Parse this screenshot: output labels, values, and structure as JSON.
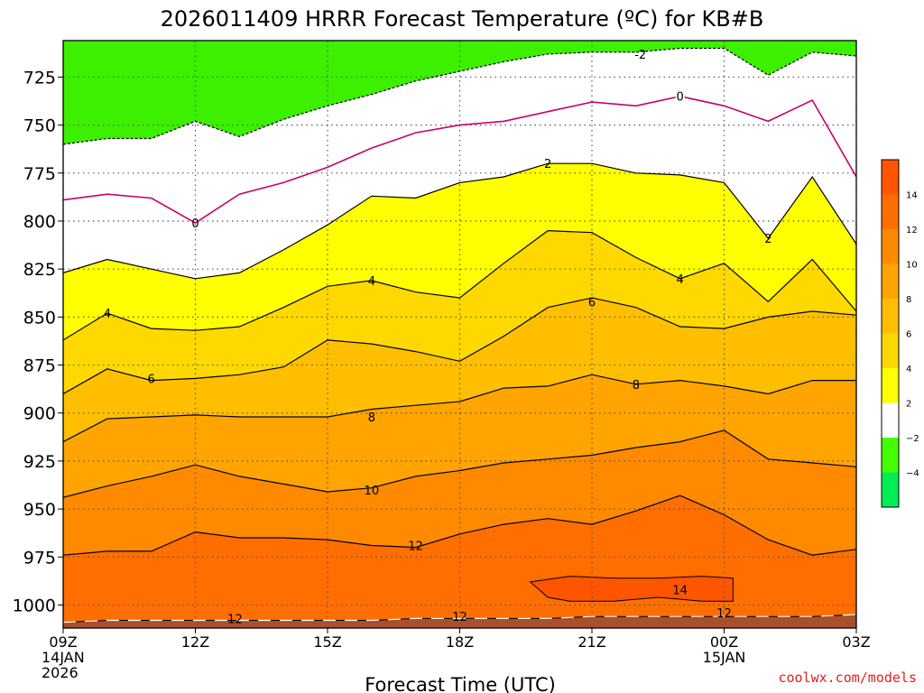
{
  "chart_data": {
    "type": "heatmap",
    "title": "2026011409 HRRR Forecast Temperature (ºC) for KB#B",
    "xlabel": "Forecast Time (UTC)",
    "ylabel": "",
    "credit": "coolwx.com/models",
    "x_ticks": [
      {
        "lines": [
          "09Z",
          "14JAN",
          "2026"
        ],
        "hour": 0
      },
      {
        "lines": [
          "12Z"
        ],
        "hour": 3
      },
      {
        "lines": [
          "15Z"
        ],
        "hour": 6
      },
      {
        "lines": [
          "18Z"
        ],
        "hour": 9
      },
      {
        "lines": [
          "21Z"
        ],
        "hour": 12
      },
      {
        "lines": [
          "00Z",
          "15JAN"
        ],
        "hour": 15
      },
      {
        "lines": [
          "03Z"
        ],
        "hour": 18
      }
    ],
    "xlim": [
      0,
      18
    ],
    "y_ticks": [
      725,
      750,
      775,
      800,
      825,
      850,
      875,
      900,
      925,
      950,
      975,
      1000
    ],
    "ylim": [
      1012,
      706
    ],
    "grid": true,
    "hours": [
      0,
      1,
      2,
      3,
      4,
      5,
      6,
      7,
      8,
      9,
      10,
      11,
      12,
      13,
      14,
      15,
      16,
      17,
      18
    ],
    "surface_pressure_hPa": [
      1009,
      1008,
      1008,
      1008,
      1008,
      1008,
      1008,
      1008,
      1007,
      1007,
      1007,
      1007,
      1006,
      1006,
      1006,
      1006,
      1006,
      1006,
      1005
    ],
    "isotherms_hPa": [
      {
        "temp": -2,
        "pressure": [
          760,
          757,
          757,
          748,
          756,
          747,
          740,
          734,
          727,
          722,
          717,
          713,
          712,
          712,
          710,
          710,
          724,
          712,
          714
        ]
      },
      {
        "temp": 0,
        "pressure": [
          789,
          786,
          788,
          801,
          786,
          780,
          772,
          762,
          754,
          750,
          748,
          743,
          738,
          740,
          735,
          740,
          748,
          737,
          777
        ]
      },
      {
        "temp": 2,
        "pressure": [
          827,
          820,
          825,
          830,
          827,
          815,
          802,
          787,
          788,
          780,
          777,
          770,
          770,
          775,
          776,
          780,
          809,
          777,
          812
        ]
      },
      {
        "temp": 4,
        "pressure": [
          862,
          848,
          856,
          857,
          855,
          845,
          834,
          831,
          837,
          840,
          822,
          805,
          806,
          819,
          830,
          822,
          842,
          820,
          847
        ]
      },
      {
        "temp": 6,
        "pressure": [
          890,
          877,
          883,
          882,
          880,
          876,
          862,
          864,
          868,
          873,
          860,
          845,
          840,
          845,
          855,
          856,
          850,
          847,
          849
        ]
      },
      {
        "temp": 8,
        "pressure": [
          915,
          903,
          902,
          901,
          902,
          902,
          902,
          898,
          896,
          894,
          887,
          886,
          880,
          885,
          883,
          886,
          890,
          883,
          883
        ]
      },
      {
        "temp": 10,
        "pressure": [
          944,
          938,
          933,
          927,
          933,
          937,
          941,
          939,
          933,
          930,
          926,
          924,
          922,
          918,
          915,
          909,
          924,
          926,
          928
        ]
      },
      {
        "temp": 12,
        "pressure": [
          974,
          972,
          972,
          962,
          965,
          965,
          966,
          969,
          970,
          963,
          958,
          955,
          958,
          951,
          943,
          953,
          966,
          974,
          971
        ]
      }
    ],
    "isotherm_labels": [
      {
        "text": "-2",
        "hour": 13.1,
        "pressure": 713
      },
      {
        "text": "0",
        "hour": 14.0,
        "pressure": 735
      },
      {
        "text": "0",
        "hour": 3.0,
        "pressure": 801
      },
      {
        "text": "2",
        "hour": 11.0,
        "pressure": 770
      },
      {
        "text": "2",
        "hour": 16.0,
        "pressure": 809
      },
      {
        "text": "4",
        "hour": 1.0,
        "pressure": 848
      },
      {
        "text": "4",
        "hour": 7.0,
        "pressure": 831
      },
      {
        "text": "4",
        "hour": 14.0,
        "pressure": 830
      },
      {
        "text": "6",
        "hour": 2.0,
        "pressure": 882
      },
      {
        "text": "6",
        "hour": 12.0,
        "pressure": 842
      },
      {
        "text": "8",
        "hour": 7.0,
        "pressure": 902
      },
      {
        "text": "8",
        "hour": 13.0,
        "pressure": 885
      },
      {
        "text": "10",
        "hour": 7.0,
        "pressure": 940
      },
      {
        "text": "12",
        "hour": 8.0,
        "pressure": 969
      },
      {
        "text": "12",
        "hour": 3.9,
        "pressure": 1007
      },
      {
        "text": "12",
        "hour": 9.0,
        "pressure": 1006
      },
      {
        "text": "12",
        "hour": 15.0,
        "pressure": 1004
      },
      {
        "text": "14",
        "hour": 14.0,
        "pressure": 992
      }
    ],
    "warm_pocket_14": {
      "hour": [
        10.6,
        11.5,
        12.5,
        13.5,
        14.5,
        15.2,
        15.2,
        14.5,
        13.5,
        12.5,
        11.5,
        11.0
      ],
      "pressure": [
        988,
        985,
        986,
        986,
        985,
        986,
        998,
        998,
        996,
        998,
        998,
        996
      ]
    },
    "contour_interval": 2,
    "colorbar": {
      "ticks": [
        -4,
        -2,
        2,
        4,
        6,
        8,
        10,
        12,
        14
      ],
      "bands": [
        {
          "from": -6,
          "to": -4,
          "color": "#00ee55"
        },
        {
          "from": -4,
          "to": -2,
          "color": "#44ff00"
        },
        {
          "from": -2,
          "to": 2,
          "color": "#ffffff"
        },
        {
          "from": 2,
          "to": 4,
          "color": "#ffff00"
        },
        {
          "from": 4,
          "to": 6,
          "color": "#ffd800"
        },
        {
          "from": 6,
          "to": 8,
          "color": "#ffbf00"
        },
        {
          "from": 8,
          "to": 10,
          "color": "#ffa400"
        },
        {
          "from": 10,
          "to": 12,
          "color": "#ff8a00"
        },
        {
          "from": 12,
          "to": 14,
          "color": "#ff6e00"
        },
        {
          "from": 14,
          "to": 16,
          "color": "#ff5500"
        }
      ]
    },
    "colors": {
      "below_minus2": "#3cf000",
      "near_zero": "#ffffff",
      "zero_line": "#c8006e",
      "ground": "#a84f2c"
    }
  }
}
